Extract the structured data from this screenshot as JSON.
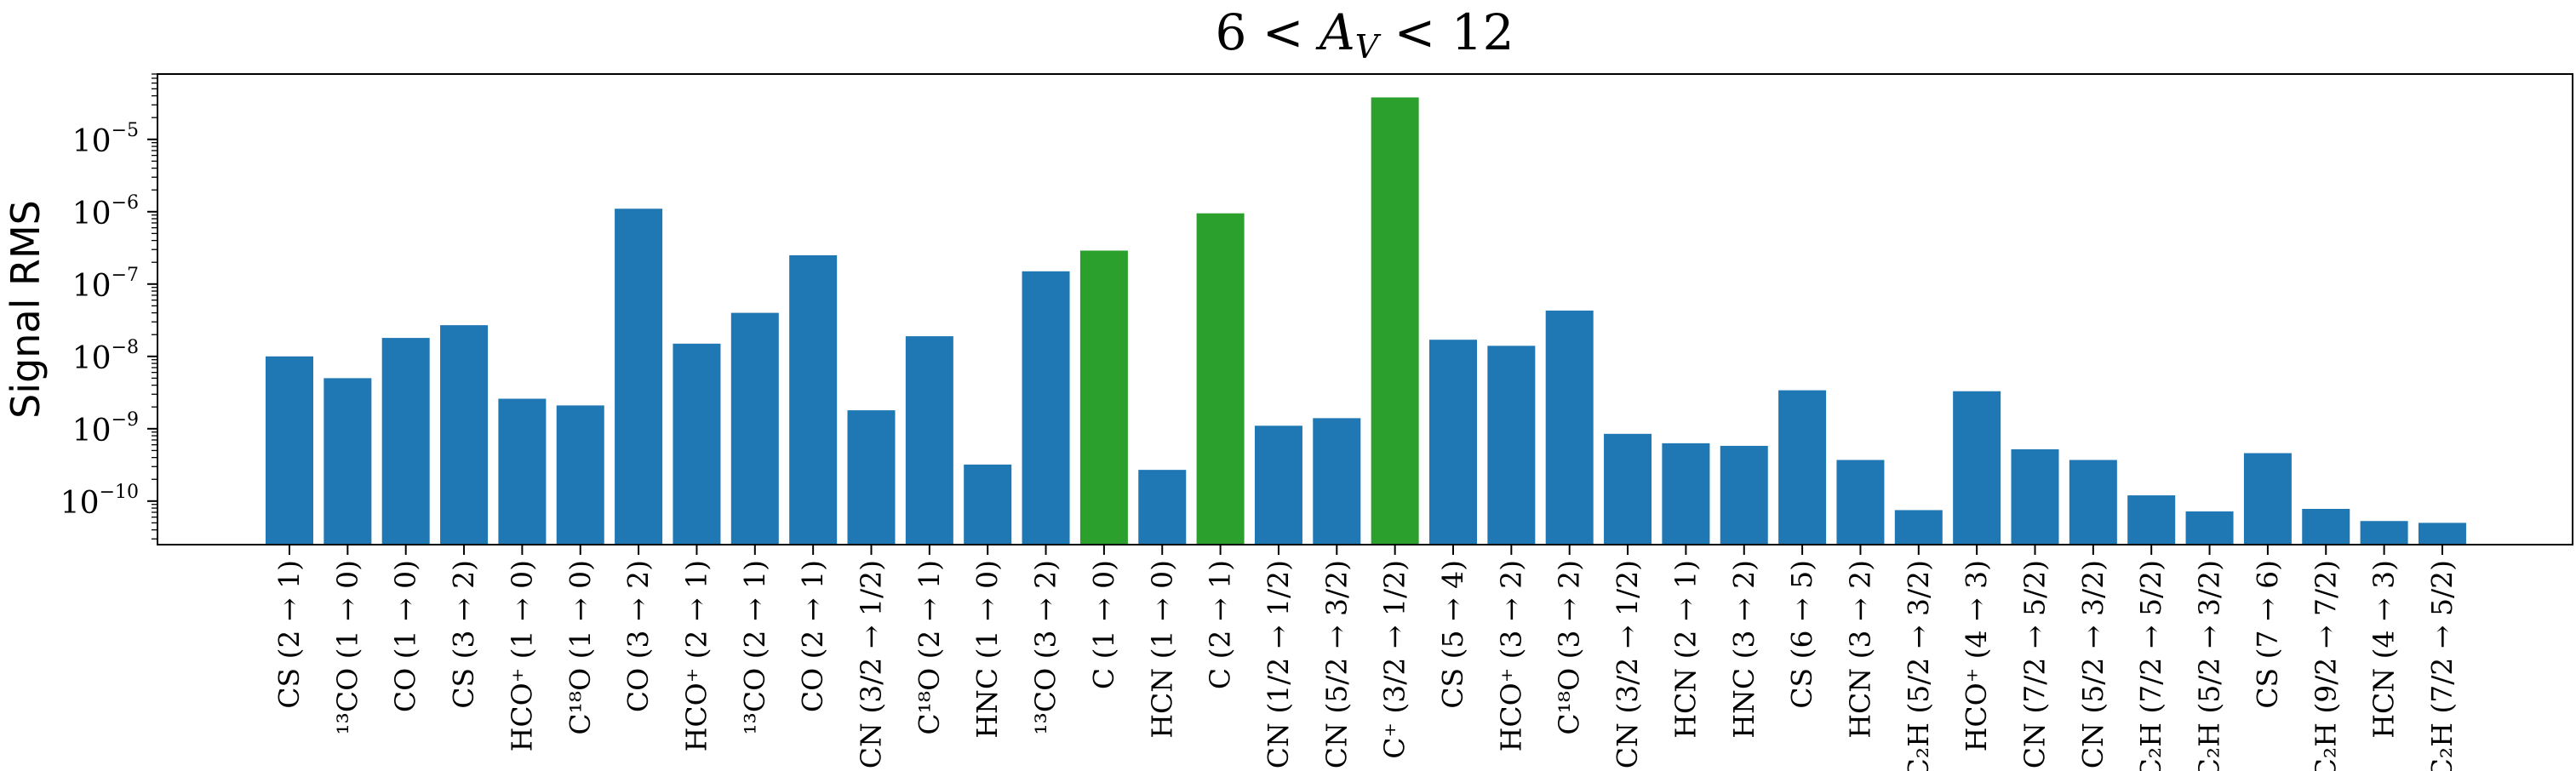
{
  "chart_data": {
    "type": "bar",
    "title": "6 < A_V < 12",
    "title_parts": {
      "left": "6 < ",
      "var": "A",
      "sub": "V",
      "right": " < 12"
    },
    "ylabel": "Signal RMS",
    "xlabel": "",
    "yscale": "log",
    "ylim": [
      2.5e-11,
      8e-05
    ],
    "yticks": [
      {
        "value": 1e-10,
        "base": "10",
        "exp": "−10"
      },
      {
        "value": 1e-09,
        "base": "10",
        "exp": "−9"
      },
      {
        "value": 1e-08,
        "base": "10",
        "exp": "−8"
      },
      {
        "value": 1e-07,
        "base": "10",
        "exp": "−7"
      },
      {
        "value": 1e-06,
        "base": "10",
        "exp": "−6"
      },
      {
        "value": 1e-05,
        "base": "10",
        "exp": "−5"
      }
    ],
    "colors": {
      "default": "#1f77b4",
      "highlight": "#2ca02c"
    },
    "categories": [
      "CS (2 → 1)",
      "¹³CO (1 → 0)",
      "CO (1 → 0)",
      "CS (3 → 2)",
      "HCO⁺ (1 → 0)",
      "C¹⁸O (1 → 0)",
      "CO (3 → 2)",
      "HCO⁺ (2 → 1)",
      "¹³CO (2 → 1)",
      "CO (2 → 1)",
      "CN (3/2 → 1/2)",
      "C¹⁸O (2 → 1)",
      "HNC (1 → 0)",
      "¹³CO (3 → 2)",
      "C (1 → 0)",
      "HCN (1 → 0)",
      "C (2 → 1)",
      "CN (1/2 → 1/2)",
      "CN (5/2 → 3/2)",
      "C⁺ (3/2 → 1/2)",
      "CS (5 → 4)",
      "HCO⁺ (3 → 2)",
      "C¹⁸O (3 → 2)",
      "CN (3/2 → 1/2)",
      "HCN (2 → 1)",
      "HNC (3 → 2)",
      "CS (6 → 5)",
      "HCN (3 → 2)",
      "C₂H (5/2 → 3/2)",
      "HCO⁺ (4 → 3)",
      "CN (7/2 → 5/2)",
      "CN (5/2 → 3/2)",
      "C₂H (7/2 → 5/2)",
      "C₂H (5/2 → 3/2)",
      "CS (7 → 6)",
      "C₂H (9/2 → 7/2)",
      "HCN (4 → 3)",
      "C₂H (7/2 → 5/2)"
    ],
    "values": [
      1e-08,
      5e-09,
      1.8e-08,
      2.7e-08,
      2.6e-09,
      2.1e-09,
      1.1e-06,
      1.5e-08,
      4e-08,
      2.5e-07,
      1.8e-09,
      1.9e-08,
      3.2e-10,
      1.5e-07,
      2.9e-07,
      2.7e-10,
      9.5e-07,
      1.1e-09,
      1.4e-09,
      3.8e-05,
      1.7e-08,
      1.4e-08,
      4.3e-08,
      8.5e-10,
      6.3e-10,
      5.8e-10,
      3.4e-09,
      3.7e-10,
      7.5e-11,
      3.3e-09,
      5.2e-10,
      3.7e-10,
      1.2e-10,
      7.2e-11,
      4.6e-10,
      7.8e-11,
      5.3e-11,
      5e-11
    ],
    "highlight": [
      false,
      false,
      false,
      false,
      false,
      false,
      false,
      false,
      false,
      false,
      false,
      false,
      false,
      false,
      true,
      false,
      true,
      false,
      false,
      true,
      false,
      false,
      false,
      false,
      false,
      false,
      false,
      false,
      false,
      false,
      false,
      false,
      false,
      false,
      false,
      false,
      false,
      false
    ]
  }
}
